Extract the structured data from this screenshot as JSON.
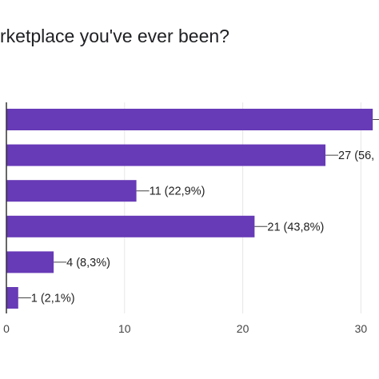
{
  "chart_data": {
    "type": "bar",
    "orientation": "horizontal",
    "title": "rketplace you've ever been?",
    "xlabel": "",
    "ylabel": "",
    "xlim": [
      0,
      30
    ],
    "ticks": [
      0,
      10,
      20,
      30
    ],
    "grid": true,
    "bar_color": "#673ab7",
    "categories": [
      "",
      "",
      "",
      "",
      "",
      ""
    ],
    "values": [
      31,
      27,
      11,
      21,
      4,
      1
    ],
    "labels": [
      "",
      "27 (56,",
      "11 (22,9%)",
      "21 (43,8%)",
      "4 (8,3%)",
      "1 (2,1%)"
    ]
  }
}
